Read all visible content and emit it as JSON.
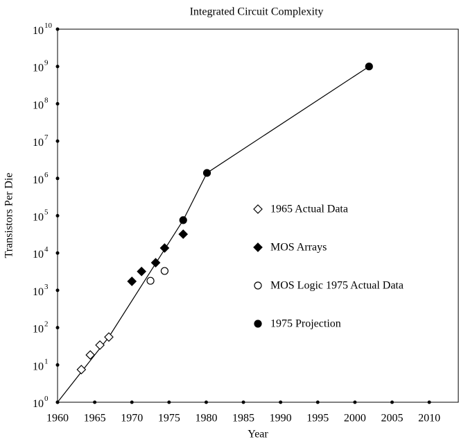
{
  "chart_data": {
    "type": "scatter",
    "title": "Integrated Circuit Complexity",
    "x_label": "Year",
    "y_label": "Transistors Per Die",
    "xlim": [
      1960,
      2014
    ],
    "xticks": [
      1960,
      1965,
      1970,
      1975,
      1980,
      1985,
      1990,
      1995,
      2000,
      2005,
      2010
    ],
    "ylim": [
      1,
      10000000000
    ],
    "log_y": true,
    "yticks": [
      {
        "value": 1,
        "label": "10",
        "sup": "0"
      },
      {
        "value": 10,
        "label": "10",
        "sup": "1"
      },
      {
        "value": 100,
        "label": "10",
        "sup": "2"
      },
      {
        "value": 1000,
        "label": "10",
        "sup": "3"
      },
      {
        "value": 10000,
        "label": "10",
        "sup": "4"
      },
      {
        "value": 100000,
        "label": "10",
        "sup": "5"
      },
      {
        "value": 1000000,
        "label": "10",
        "sup": "6"
      },
      {
        "value": 10000000,
        "label": "10",
        "sup": "7"
      },
      {
        "value": 100000000,
        "label": "10",
        "sup": "8"
      },
      {
        "value": 1000000000,
        "label": "10",
        "sup": "9"
      },
      {
        "value": 10000000000,
        "label": "10",
        "sup": "10"
      }
    ],
    "color": "#000000",
    "series": [
      {
        "name": "1965 Actual Data",
        "marker": "diamond-open",
        "x": [
          1963.2,
          1964.4,
          1965.7,
          1966.9
        ],
        "values": [
          7.5,
          18.5,
          34,
          56
        ]
      },
      {
        "name": "MOS Arrays",
        "marker": "diamond-filled",
        "x": [
          1970.0,
          1971.3,
          1973.2,
          1974.4,
          1976.9
        ],
        "values": [
          1740,
          3200,
          5500,
          13600,
          32000
        ]
      },
      {
        "name": "MOS Logic 1975 Actual Data",
        "marker": "circle-open",
        "x": [
          1972.5,
          1974.4
        ],
        "values": [
          1800,
          3300
        ]
      },
      {
        "name": "1975 Projection",
        "marker": "circle-filled",
        "x": [
          1976.9,
          1980.1,
          2001.9
        ],
        "values": [
          76000,
          1400000,
          1000000000
        ]
      }
    ],
    "trend_line": {
      "x": [
        1960,
        1966.9,
        1976.9,
        1980.1,
        2001.9
      ],
      "values": [
        1,
        56,
        76000,
        1400000,
        1000000000
      ]
    }
  }
}
